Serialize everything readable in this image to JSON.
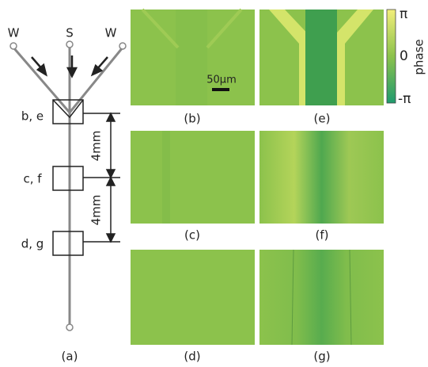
{
  "inlets": [
    "W",
    "S",
    "W"
  ],
  "box_labels": [
    "b, e",
    "c, f",
    "d, g"
  ],
  "distances": [
    "4mm",
    "4mm"
  ],
  "scale_bar": "50μm",
  "panels": [
    "(a)",
    "(b)",
    "(c)",
    "(d)",
    "(e)",
    "(f)",
    "(g)"
  ],
  "colorbar": {
    "label": "phase",
    "ticks": [
      "π",
      "0",
      "-π"
    ]
  }
}
